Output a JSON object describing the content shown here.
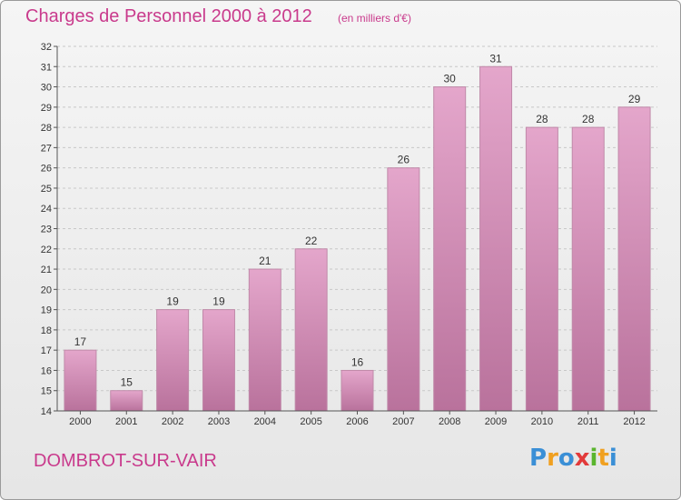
{
  "header": {
    "title": "Charges de Personnel 2000 à 2012",
    "subtitle": "(en milliers d'€)"
  },
  "footer": {
    "commune": "DOMBROT-SUR-VAIR",
    "logo_letters": [
      {
        "char": "P",
        "color": "#3a8fd6"
      },
      {
        "char": "r",
        "color": "#f0a020"
      },
      {
        "char": "o",
        "color": "#3a8fd6"
      },
      {
        "char": "x",
        "color": "#e23a3a"
      },
      {
        "char": "i",
        "color": "#5ab52e"
      },
      {
        "char": "t",
        "color": "#f0a020"
      },
      {
        "char": "i",
        "color": "#3a8fd6"
      }
    ]
  },
  "colors": {
    "bar_top": "#e4a6cb",
    "bar_bottom": "#b9729c",
    "bar_border": "#c08aa9",
    "title": "#c93a8c"
  },
  "chart_data": {
    "type": "bar",
    "categories": [
      "2000",
      "2001",
      "2002",
      "2003",
      "2004",
      "2005",
      "2006",
      "2007",
      "2008",
      "2009",
      "2010",
      "2011",
      "2012"
    ],
    "values": [
      17,
      15,
      19,
      19,
      21,
      22,
      16,
      26,
      30,
      31,
      28,
      28,
      29
    ],
    "title": "Charges de Personnel 2000 à 2012",
    "subtitle": "(en milliers d'€)",
    "ylim": [
      14,
      32
    ],
    "yticks": [
      14,
      15,
      16,
      17,
      18,
      19,
      20,
      21,
      22,
      23,
      24,
      25,
      26,
      27,
      28,
      29,
      30,
      31,
      32
    ],
    "grid": true,
    "data_labels": true
  }
}
